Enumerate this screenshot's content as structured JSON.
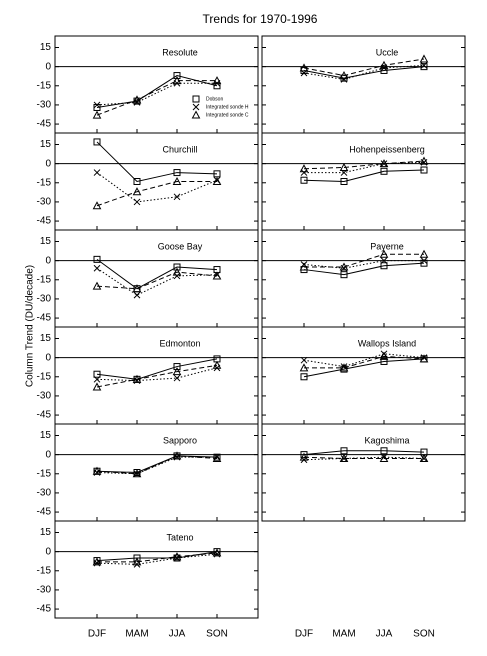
{
  "title": "Trends for 1970-1996",
  "y_label": "Column Trend (DU/decade)",
  "categories": [
    "DJF",
    "MAM",
    "JJA",
    "SON"
  ],
  "ylim": [
    -52,
    24
  ],
  "yticks": [
    15,
    0,
    -15,
    -30,
    -45
  ],
  "legend": [
    {
      "name": "Dobson",
      "marker": "square",
      "dash": "solid",
      "color": "#000000"
    },
    {
      "name": "Integrated sonde H",
      "marker": "cross",
      "dash": "dotted",
      "color": "#000000"
    },
    {
      "name": "Integrated sonde C",
      "marker": "triangle",
      "dash": "dashed",
      "color": "#000000"
    }
  ],
  "chart_data": [
    {
      "type": "line",
      "title": "Resolute",
      "series": [
        {
          "values": [
            -32,
            -27,
            -7,
            -15
          ]
        },
        {
          "values": [
            -30,
            -28,
            -13,
            -13
          ]
        },
        {
          "values": [
            -38,
            -26,
            -11,
            -11
          ]
        }
      ]
    },
    {
      "type": "line",
      "title": "Churchill",
      "series": [
        {
          "values": [
            17,
            -14,
            -7,
            -8
          ]
        },
        {
          "values": [
            -7,
            -30,
            -26,
            -13
          ]
        },
        {
          "values": [
            -33,
            -22,
            -14,
            -14
          ]
        }
      ]
    },
    {
      "type": "line",
      "title": "Goose Bay",
      "series": [
        {
          "values": [
            1,
            -22,
            -5,
            -7
          ]
        },
        {
          "values": [
            -6,
            -27,
            -12,
            -11
          ]
        },
        {
          "values": [
            -20,
            -22,
            -9,
            -12
          ]
        }
      ]
    },
    {
      "type": "line",
      "title": "Edmonton",
      "series": [
        {
          "values": [
            -13,
            -17,
            -7,
            -1
          ]
        },
        {
          "values": [
            -17,
            -18,
            -16,
            -8
          ]
        },
        {
          "values": [
            -23,
            -17,
            -11,
            -6
          ]
        }
      ]
    },
    {
      "type": "line",
      "title": "Sapporo",
      "series": [
        {
          "values": [
            -13,
            -14,
            -1,
            -2
          ]
        },
        {
          "values": [
            -14,
            -15,
            -2,
            -2
          ]
        },
        {
          "values": [
            -13,
            -15,
            -1,
            -3
          ]
        }
      ]
    },
    {
      "type": "line",
      "title": "Tateno",
      "series": [
        {
          "values": [
            -7,
            -5,
            -5,
            0
          ]
        },
        {
          "values": [
            -9,
            -10,
            -5,
            -2
          ]
        },
        {
          "values": [
            -8,
            -8,
            -4,
            -1
          ]
        }
      ]
    },
    {
      "type": "line",
      "title": "Uccle",
      "series": [
        {
          "values": [
            -3,
            -9,
            -3,
            0
          ]
        },
        {
          "values": [
            -5,
            -10,
            -1,
            1
          ]
        },
        {
          "values": [
            -1,
            -7,
            1,
            6
          ]
        }
      ]
    },
    {
      "type": "line",
      "title": "Hohenpeissenberg",
      "series": [
        {
          "values": [
            -13,
            -14,
            -6,
            -5
          ]
        },
        {
          "values": [
            -7,
            -7,
            0,
            1
          ]
        },
        {
          "values": [
            -4,
            -3,
            0,
            2
          ]
        }
      ]
    },
    {
      "type": "line",
      "title": "Payerne",
      "series": [
        {
          "values": [
            -7,
            -11,
            -4,
            -2
          ]
        },
        {
          "values": [
            -3,
            -6,
            0,
            0
          ]
        },
        {
          "values": [
            -5,
            -5,
            5,
            5
          ]
        }
      ]
    },
    {
      "type": "line",
      "title": "Wallops Island",
      "series": [
        {
          "values": [
            -15,
            -9,
            -3,
            -1
          ]
        },
        {
          "values": [
            -2,
            -7,
            3,
            0
          ]
        },
        {
          "values": [
            -8,
            -8,
            1,
            -1
          ]
        }
      ]
    },
    {
      "type": "line",
      "title": "Kagoshima",
      "series": [
        {
          "values": [
            0,
            3,
            3,
            2
          ]
        },
        {
          "values": [
            -4,
            -3,
            -2,
            -3
          ]
        },
        {
          "values": [
            -2,
            -3,
            -3,
            -3
          ]
        }
      ]
    }
  ]
}
